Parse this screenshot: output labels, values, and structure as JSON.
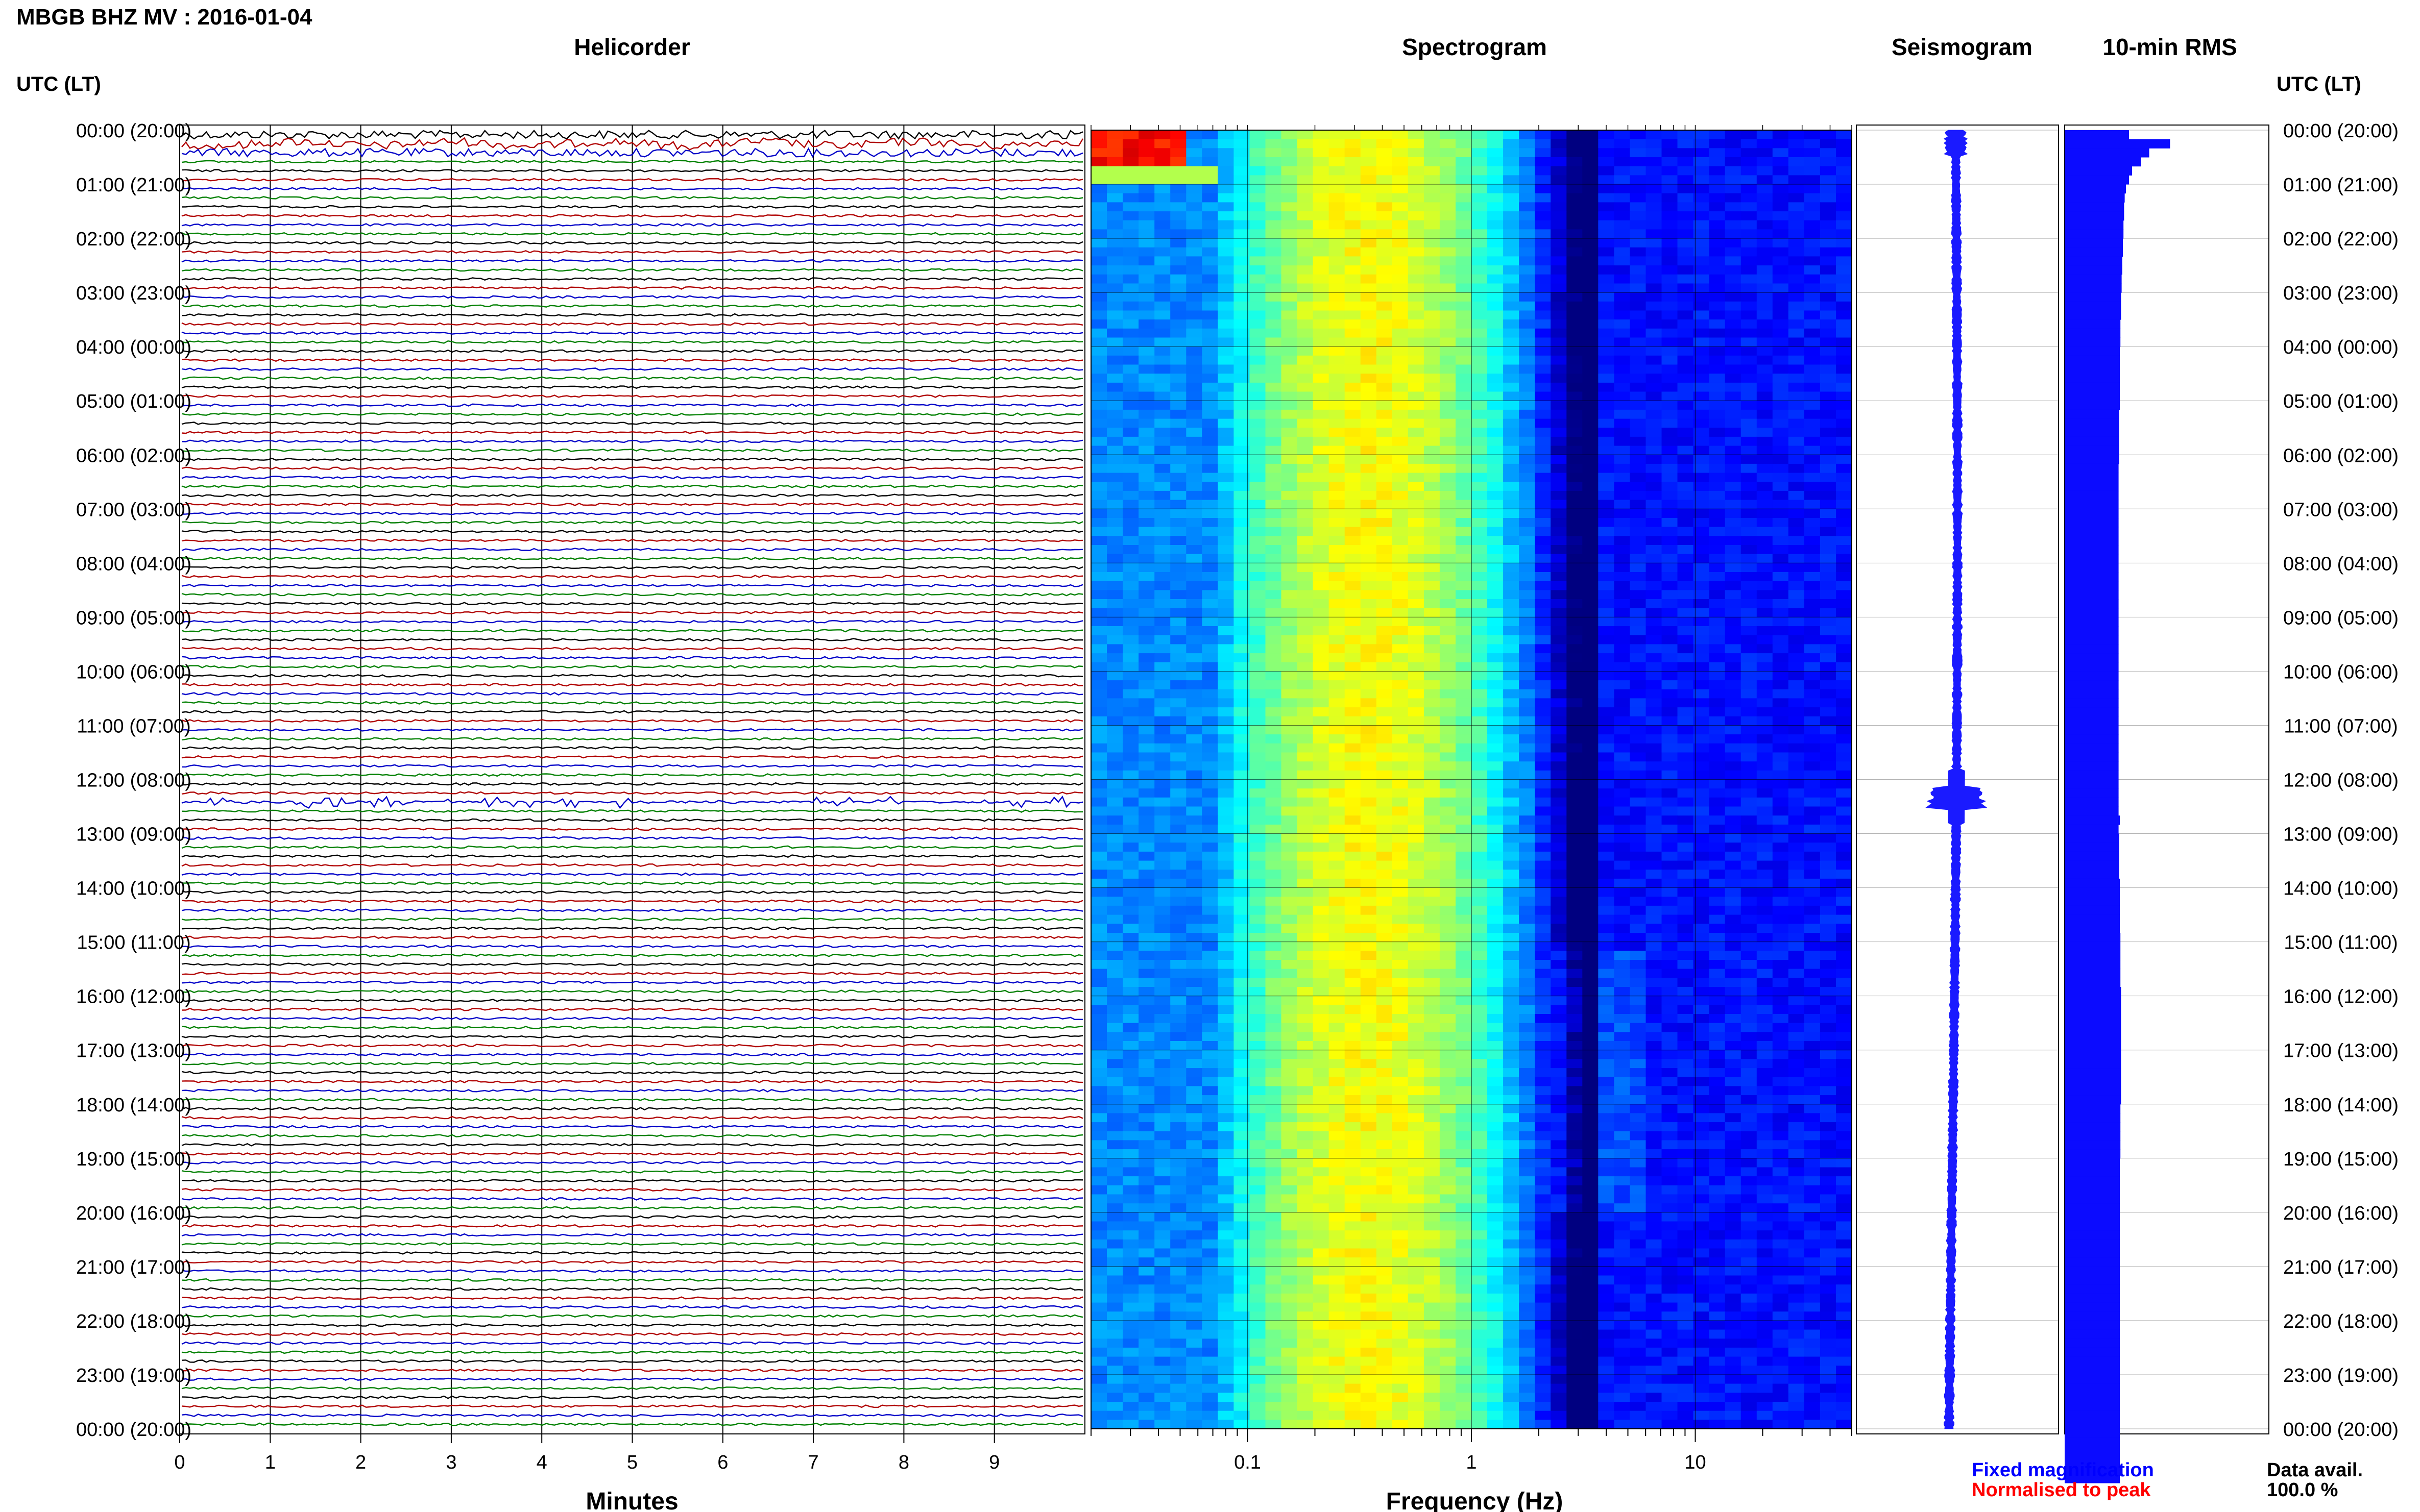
{
  "header": {
    "station_title": "MBGB BHZ MV : 2016-01-04",
    "utc_label_left": "UTC (LT)",
    "utc_label_right": "UTC (LT)"
  },
  "panels": {
    "helicorder": "Helicorder",
    "spectrogram": "Spectrogram",
    "seismogram": "Seismogram",
    "rms": "10-min RMS"
  },
  "time_labels": [
    "00:00 (20:00)",
    "01:00 (21:00)",
    "02:00 (22:00)",
    "03:00 (23:00)",
    "04:00 (00:00)",
    "05:00 (01:00)",
    "06:00 (02:00)",
    "07:00 (03:00)",
    "08:00 (04:00)",
    "09:00 (05:00)",
    "10:00 (06:00)",
    "11:00 (07:00)",
    "12:00 (08:00)",
    "13:00 (09:00)",
    "14:00 (10:00)",
    "15:00 (11:00)",
    "16:00 (12:00)",
    "17:00 (13:00)",
    "18:00 (14:00)",
    "19:00 (15:00)",
    "20:00 (16:00)",
    "21:00 (17:00)",
    "22:00 (18:00)",
    "23:00 (19:00)",
    "00:00 (20:00)"
  ],
  "footer": {
    "fixed_magnification": "Fixed magnification",
    "normalised_to_peak": "Normalised to peak",
    "data_avail_label": "Data avail.",
    "data_avail_value": "100.0 %"
  },
  "colors": {
    "trace_cycle": [
      "#000000",
      "#b00000",
      "#0000c8",
      "#008000"
    ],
    "fixed_magnification": "#0000ff",
    "normalised_to_peak": "#ff0000",
    "seismogram": "#1a1aff",
    "rms_bar": "#0b0bff"
  },
  "chart_data": [
    {
      "type": "line",
      "panel": "Helicorder",
      "xlabel": "Minutes",
      "x_ticks": [
        "0",
        "1",
        "2",
        "3",
        "4",
        "5",
        "6",
        "7",
        "8",
        "9"
      ],
      "xlim": [
        0,
        10
      ],
      "traces_per_hour": 6,
      "hours": 24,
      "notes": "Each row is a 10-minute trace; stronger bursts around 12:20 UTC"
    },
    {
      "type": "heatmap",
      "panel": "Spectrogram",
      "xlabel": "Frequency (Hz)",
      "x_scale": "log",
      "x_ticks": [
        "0.1",
        "1",
        "10"
      ],
      "xlim": [
        0.02,
        50
      ],
      "colormap": "jet",
      "peak_band_hz": [
        0.2,
        0.6
      ],
      "low_frequency_high_energy": {
        "time_utc": "00:00-00:40",
        "band_hz": [
          0.02,
          0.05
        ]
      }
    },
    {
      "type": "line",
      "panel": "Seismogram",
      "event_utc": "12:20"
    },
    {
      "type": "bar",
      "panel": "10-min RMS",
      "orientation": "horizontal",
      "series": [
        {
          "values": [
            1.05,
            1.72,
            1.38,
            1.25,
            1.1,
            1.05,
            1.0,
            0.98,
            0.97,
            0.97,
            0.96,
            0.96,
            0.95,
            0.95,
            0.94,
            0.94,
            0.93,
            0.93,
            0.92,
            0.92,
            0.92,
            0.91,
            0.91,
            0.91,
            0.9,
            0.9,
            0.9,
            0.9,
            0.9,
            0.9,
            0.9,
            0.89,
            0.89,
            0.89,
            0.89,
            0.89,
            0.89,
            0.88,
            0.88,
            0.88,
            0.88,
            0.88,
            0.88,
            0.88,
            0.88,
            0.88,
            0.88,
            0.88,
            0.88,
            0.88,
            0.88,
            0.88,
            0.88,
            0.88,
            0.88,
            0.88,
            0.88,
            0.88,
            0.88,
            0.88,
            0.88,
            0.88,
            0.88,
            0.88,
            0.88,
            0.88,
            0.88,
            0.88,
            0.88,
            0.88,
            0.88,
            0.88,
            0.88,
            0.88,
            0.88,
            0.88,
            0.9,
            0.88,
            0.89,
            0.89,
            0.89,
            0.89,
            0.89,
            0.9,
            0.9,
            0.9,
            0.9,
            0.9,
            0.9,
            0.91,
            0.91,
            0.91,
            0.91,
            0.91,
            0.91,
            0.92,
            0.92,
            0.92,
            0.92,
            0.92,
            0.92,
            0.92,
            0.92,
            0.92,
            0.92,
            0.92,
            0.92,
            0.92,
            0.91,
            0.91,
            0.91,
            0.91,
            0.91,
            0.91,
            0.9,
            0.9,
            0.9,
            0.9,
            0.9,
            0.9,
            0.9,
            0.9,
            0.9,
            0.9,
            0.9,
            0.9,
            0.9,
            0.9,
            0.9,
            0.9,
            0.9,
            0.9,
            0.9,
            0.9,
            0.9,
            0.9,
            0.9,
            0.9,
            0.9,
            0.9,
            0.9,
            0.9,
            0.9,
            0.9,
            0.9,
            0.9,
            0.9,
            0.9,
            0.9,
            0.9
          ]
        }
      ]
    }
  ]
}
